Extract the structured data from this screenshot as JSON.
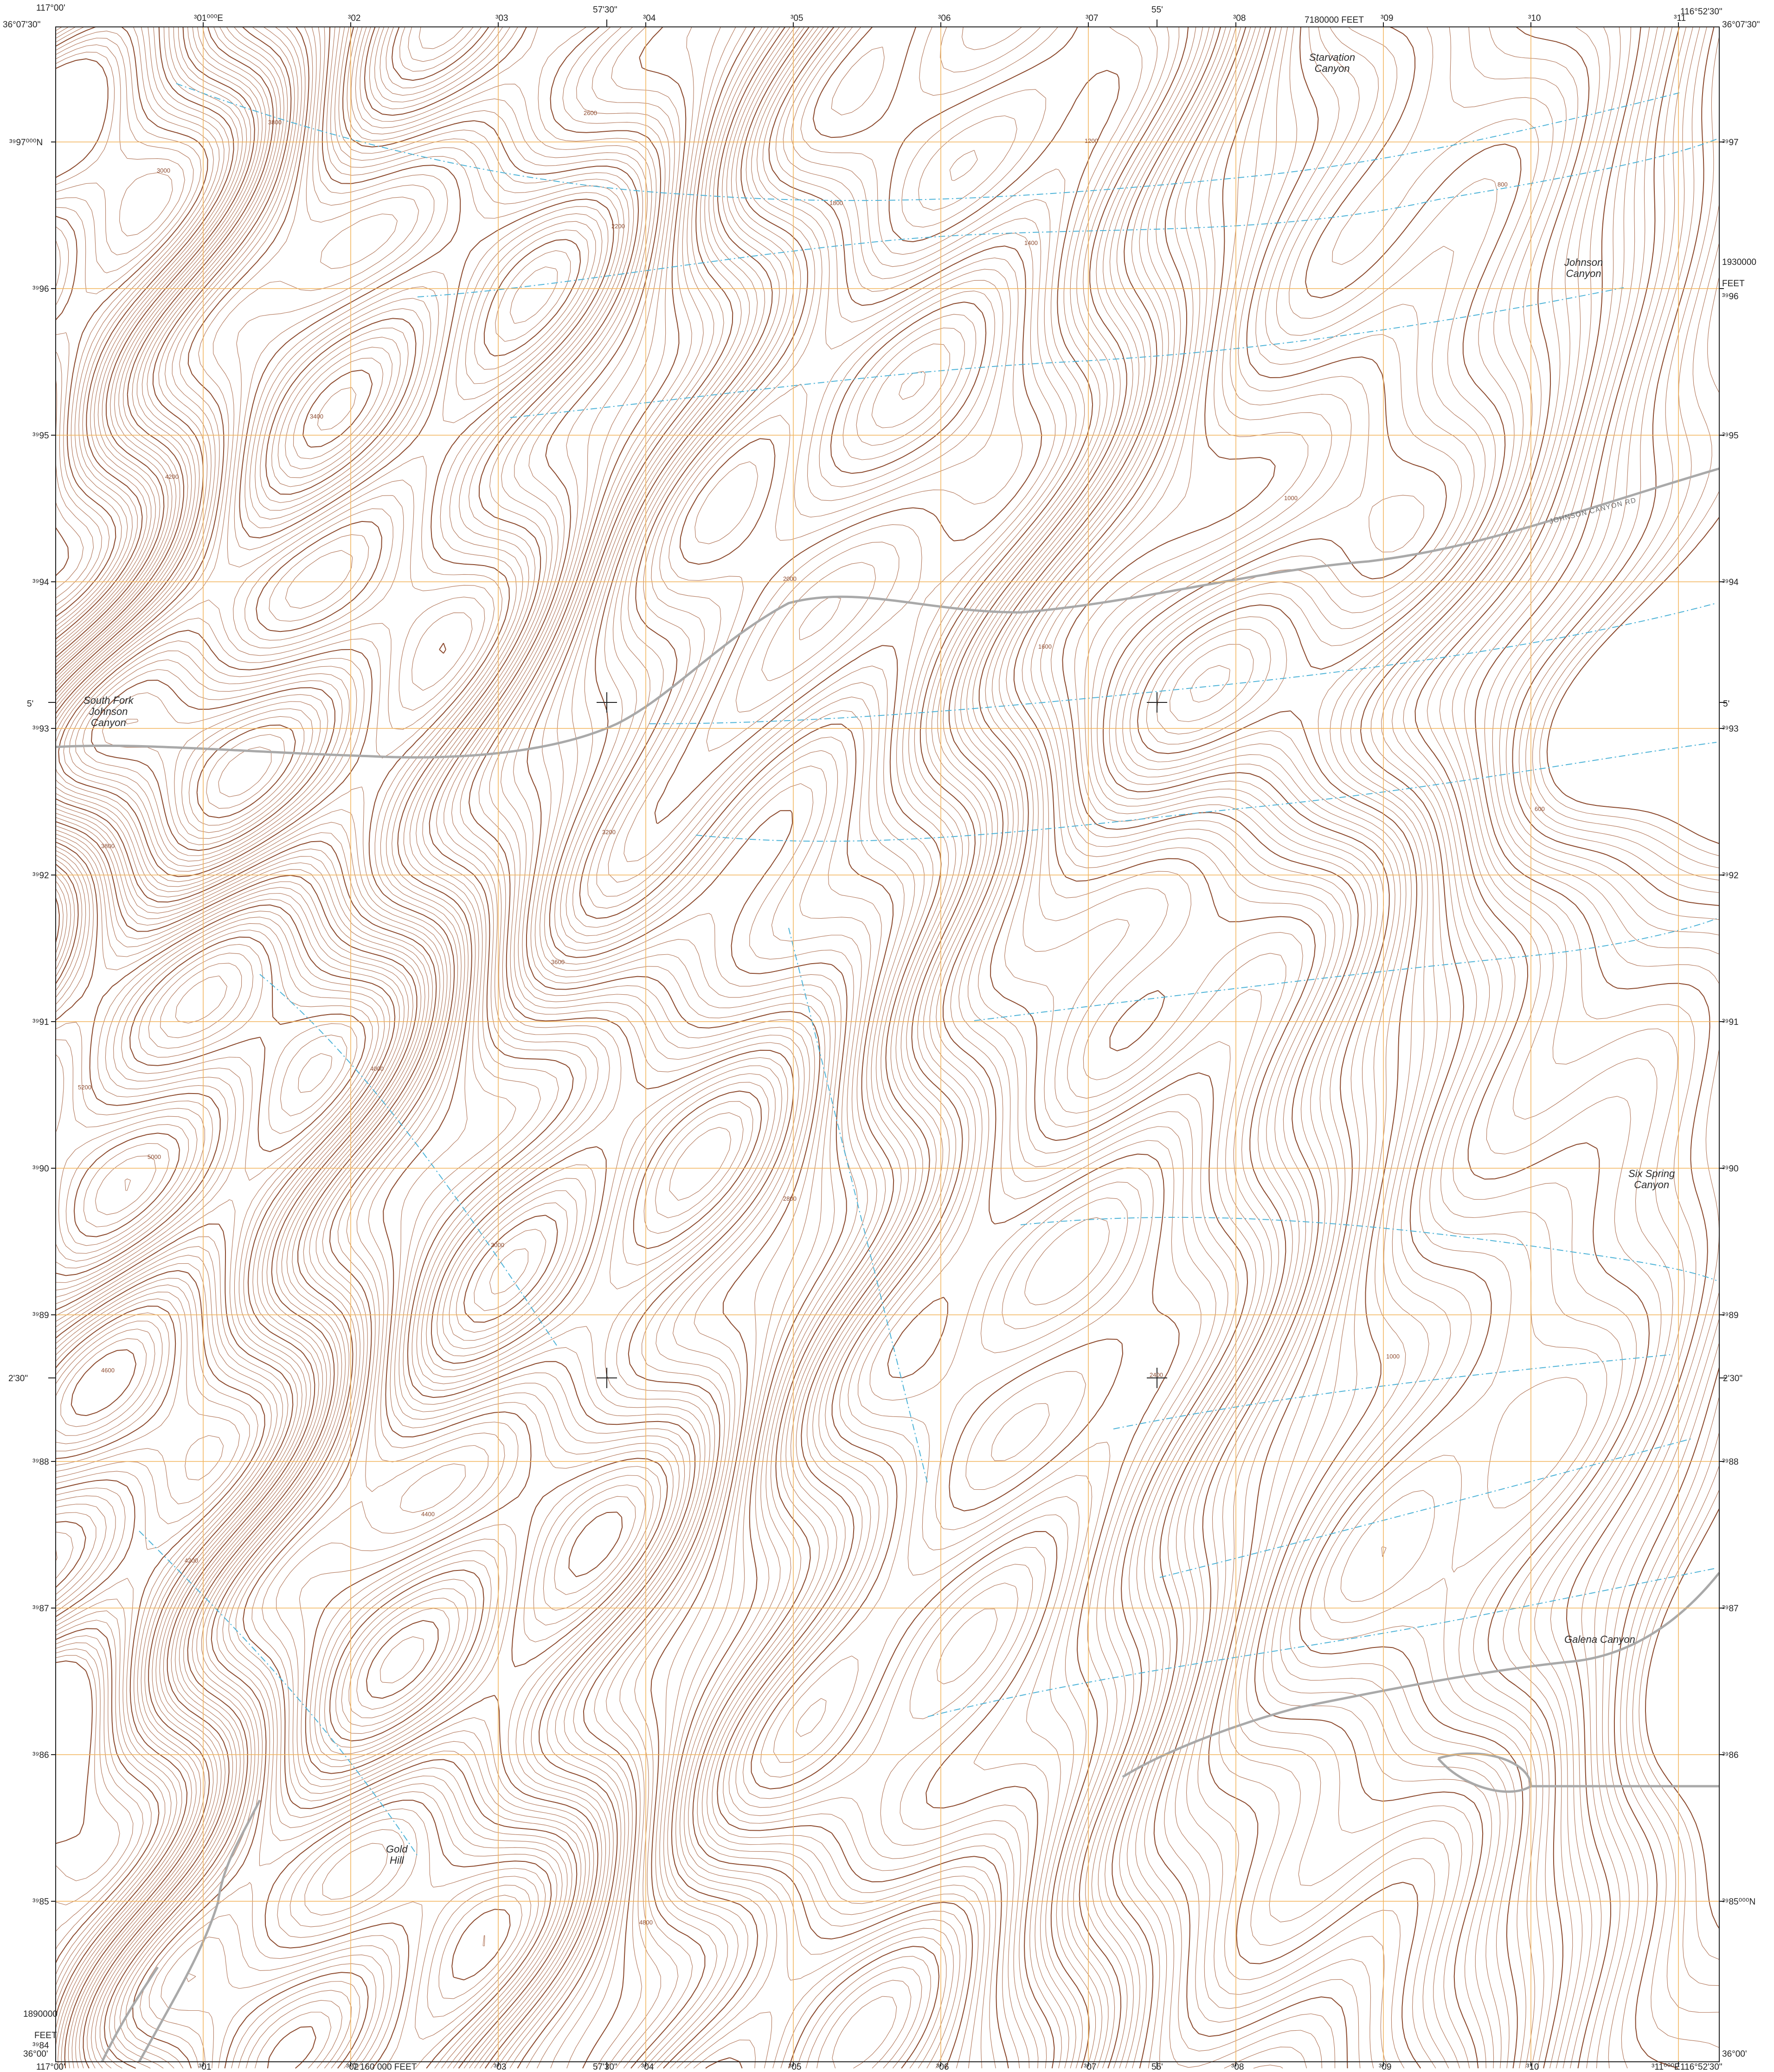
{
  "map": {
    "colors": {
      "contour": "#b07457",
      "contour_index": "#8c4a2e",
      "grid": "#f2b35a",
      "stream": "#4fb4d8",
      "road": "#a9a9a9",
      "frame": "#222222",
      "background": "#ffffff"
    },
    "corner_coords": {
      "top_left_lon": "117°00'",
      "top_left_lat": "36°07'30\"",
      "top_right_lon": "116°52'30\"",
      "top_right_lat": "36°07'30\"",
      "bottom_left_lat": "36°00'",
      "bottom_left_lon": "117°00'",
      "bottom_right_lat": "36°00'",
      "bottom_right_lon": "116°52'30\""
    },
    "lon_ticks": {
      "top_mid": "57'30\"",
      "top_55": "55'",
      "bottom_mid": "57'30\"",
      "bottom_55": "55'"
    },
    "lat_ticks": {
      "left_5": "5'",
      "left_230": "2'30\"",
      "right_5": "5'",
      "right_230": "2'30\""
    },
    "easting_labels_top": [
      "³01⁰⁰⁰E",
      "³02",
      "³03",
      "³04",
      "³05",
      "³06",
      "³07",
      "³08",
      "³09",
      "³10",
      "³11"
    ],
    "easting_labels_bottom": [
      "³01",
      "³02",
      "³03",
      "³04",
      "³05",
      "³06",
      "³07",
      "³08",
      "³09",
      "³10",
      "³11⁰⁰⁰E"
    ],
    "northing_labels_left": [
      "³⁹97⁰⁰⁰N",
      "³⁹96",
      "³⁹95",
      "³⁹94",
      "³⁹93",
      "³⁹92",
      "³⁹91",
      "³⁹90",
      "³⁹89",
      "³⁹88",
      "³⁹87",
      "³⁹86",
      "³⁹85",
      "³⁹84"
    ],
    "northing_labels_right": [
      "³⁹97",
      "³⁹96",
      "³⁹95",
      "³⁹94",
      "³⁹93",
      "³⁹92",
      "³⁹91",
      "³⁹90",
      "³⁹89",
      "³⁹88",
      "³⁹87",
      "³⁹86",
      "³⁹85⁰⁰⁰N"
    ],
    "state_plane": {
      "top_feet": "7180000 FEET",
      "bottom_feet": "7 160 000 FEET",
      "right_value": "1930000",
      "right_unit": "FEET",
      "left_value": "1890000",
      "left_unit": "FEET"
    },
    "place_names": [
      {
        "lines": [
          "Starvation",
          "Canyon"
        ]
      },
      {
        "lines": [
          "Johnson",
          "Canyon"
        ]
      },
      {
        "lines": [
          "South Fork",
          "Johnson",
          "Canyon"
        ]
      },
      {
        "lines": [
          "Six Spring",
          "Canyon"
        ]
      },
      {
        "lines": [
          "Galena Canyon"
        ]
      },
      {
        "lines": [
          "Gold",
          "Hill"
        ]
      }
    ],
    "road_label": "JOHNSON CANYON RD",
    "contour_labels": [
      "3800",
      "3400",
      "4200",
      "3000",
      "2600",
      "2200",
      "1800",
      "1400",
      "1200",
      "1000",
      "800",
      "2000",
      "3200",
      "4000",
      "5000",
      "4600",
      "1600",
      "2800",
      "3600",
      "4400",
      "4800",
      "5200",
      "2400",
      "600",
      "1000",
      "3800",
      "4200",
      "3000"
    ]
  }
}
